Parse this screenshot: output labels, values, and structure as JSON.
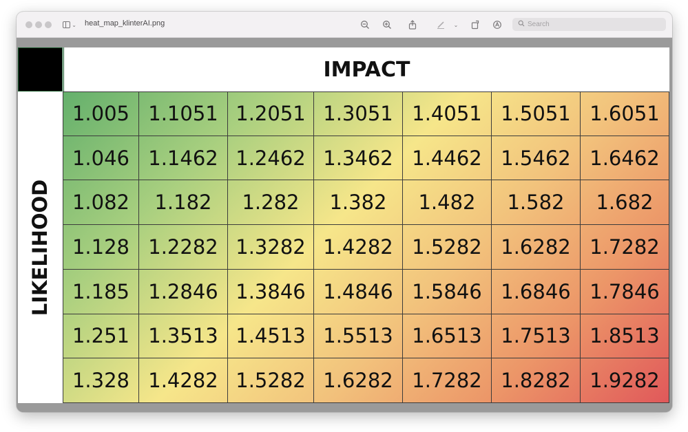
{
  "window": {
    "filename": "heat_map_klinterAI.png",
    "search_placeholder": "Search"
  },
  "toolbar": {
    "icons": [
      "zoom-out-icon",
      "zoom-in-icon",
      "share-icon",
      "markup-icon",
      "rotate-icon",
      "annotate-icon"
    ]
  },
  "heatmap": {
    "header": "IMPACT",
    "side_label": "LIKELIHOOD",
    "rows": [
      [
        "1.005",
        "1.1051",
        "1.2051",
        "1.3051",
        "1.4051",
        "1.5051",
        "1.6051"
      ],
      [
        "1.046",
        "1.1462",
        "1.2462",
        "1.3462",
        "1.4462",
        "1.5462",
        "1.6462"
      ],
      [
        "1.082",
        "1.182",
        "1.282",
        "1.382",
        "1.482",
        "1.582",
        "1.682"
      ],
      [
        "1.128",
        "1.2282",
        "1.3282",
        "1.4282",
        "1.5282",
        "1.6282",
        "1.7282"
      ],
      [
        "1.185",
        "1.2846",
        "1.3846",
        "1.4846",
        "1.5846",
        "1.6846",
        "1.7846"
      ],
      [
        "1.251",
        "1.3513",
        "1.4513",
        "1.5513",
        "1.6513",
        "1.7513",
        "1.8513"
      ],
      [
        "1.328",
        "1.4282",
        "1.5282",
        "1.6282",
        "1.7282",
        "1.8282",
        "1.9282"
      ]
    ],
    "colors": {
      "low": "#64b06c",
      "mid": "#f6e68a",
      "high": "#e0585a"
    }
  }
}
